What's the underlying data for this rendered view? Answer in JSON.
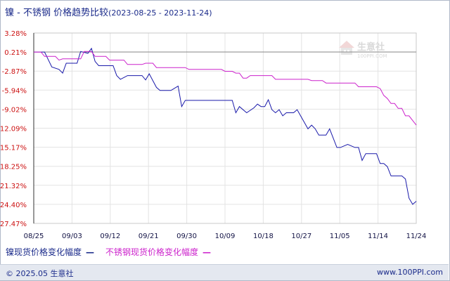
{
  "title": {
    "main": "镍 - 不锈钢 价格趋势比较",
    "range": "(2023-08-25 - 2023-11-24)"
  },
  "watermark": {
    "brand": "生意社",
    "url": "100PPI.COM"
  },
  "legend": {
    "items": [
      {
        "label": "镍现货价格变化幅度",
        "symbol": "—",
        "color": "#1a1aaa"
      },
      {
        "label": "不锈钢现货价格变化幅度",
        "symbol": "—",
        "color": "#cc22cc"
      }
    ]
  },
  "footer": {
    "copyright": "© 2025.05 生意社",
    "site": "www.100PPI.com"
  },
  "chart_data": {
    "type": "line",
    "xlabel": "",
    "ylabel": "",
    "x_ticks": [
      "08/25",
      "09/03",
      "09/12",
      "09/21",
      "09/30",
      "10/09",
      "10/18",
      "10/27",
      "11/05",
      "11/14",
      "11/24"
    ],
    "y_ticks": [
      "3.28%",
      "0.21%",
      "-2.87%",
      "-5.94%",
      "-9.02%",
      "-12.09%",
      "-15.17%",
      "-18.25%",
      "-21.32%",
      "-24.40%",
      "-27.47%"
    ],
    "ylim": [
      -27.47,
      3.28
    ],
    "grid": true,
    "legend_position": "bottom",
    "series": [
      {
        "name": "镍现货价格变化幅度",
        "color": "#1a1aaa",
        "points": [
          [
            0,
            0.21
          ],
          [
            3,
            0.21
          ],
          [
            5,
            -2.2
          ],
          [
            7,
            -2.6
          ],
          [
            8,
            -3.2
          ],
          [
            9,
            -1.6
          ],
          [
            12,
            -1.6
          ],
          [
            13,
            0.3
          ],
          [
            15,
            0.0
          ],
          [
            16,
            0.8
          ],
          [
            17,
            -1.3
          ],
          [
            18,
            -2.0
          ],
          [
            22,
            -2.0
          ],
          [
            23,
            -3.6
          ],
          [
            24,
            -4.2
          ],
          [
            25,
            -3.9
          ],
          [
            26,
            -3.6
          ],
          [
            30,
            -3.6
          ],
          [
            31,
            -4.3
          ],
          [
            32,
            -3.3
          ],
          [
            34,
            -5.5
          ],
          [
            35,
            -6.0
          ],
          [
            38,
            -6.0
          ],
          [
            40,
            -5.3
          ],
          [
            41,
            -8.6
          ],
          [
            42,
            -7.6
          ],
          [
            55,
            -7.6
          ],
          [
            56,
            -9.6
          ],
          [
            57,
            -8.6
          ],
          [
            59,
            -9.6
          ],
          [
            61,
            -8.8
          ],
          [
            62,
            -8.2
          ],
          [
            63,
            -8.6
          ],
          [
            64,
            -8.6
          ],
          [
            65,
            -7.5
          ],
          [
            66,
            -9.1
          ],
          [
            67,
            -9.6
          ],
          [
            68,
            -9.1
          ],
          [
            69,
            -10.1
          ],
          [
            70,
            -9.6
          ],
          [
            72,
            -9.6
          ],
          [
            73,
            -9.1
          ],
          [
            76,
            -12.2
          ],
          [
            77,
            -11.6
          ],
          [
            78,
            -12.2
          ],
          [
            79,
            -13.2
          ],
          [
            81,
            -13.2
          ],
          [
            82,
            -12.2
          ],
          [
            84,
            -15.2
          ],
          [
            85,
            -15.2
          ],
          [
            87,
            -14.7
          ],
          [
            89,
            -15.2
          ],
          [
            90,
            -15.2
          ],
          [
            91,
            -17.3
          ],
          [
            92,
            -16.2
          ],
          [
            95,
            -16.2
          ],
          [
            96,
            -17.8
          ],
          [
            97,
            -17.8
          ],
          [
            98,
            -18.3
          ],
          [
            99,
            -19.8
          ],
          [
            102,
            -19.8
          ],
          [
            103,
            -20.3
          ],
          [
            104,
            -23.4
          ],
          [
            105,
            -24.4
          ],
          [
            106,
            -23.9
          ]
        ]
      },
      {
        "name": "不锈钢现货价格变化幅度",
        "color": "#cc22cc",
        "points": [
          [
            0,
            0.21
          ],
          [
            2,
            0.21
          ],
          [
            3,
            -0.5
          ],
          [
            6,
            -0.5
          ],
          [
            7,
            -1.1
          ],
          [
            8,
            -0.9
          ],
          [
            13,
            -0.9
          ],
          [
            14,
            0.3
          ],
          [
            16,
            0.3
          ],
          [
            17,
            -0.5
          ],
          [
            20,
            -0.5
          ],
          [
            21,
            -1.1
          ],
          [
            25,
            -1.1
          ],
          [
            26,
            -1.8
          ],
          [
            30,
            -1.8
          ],
          [
            31,
            -1.6
          ],
          [
            33,
            -1.6
          ],
          [
            34,
            -2.3
          ],
          [
            42,
            -2.3
          ],
          [
            43,
            -2.6
          ],
          [
            52,
            -2.6
          ],
          [
            53,
            -2.9
          ],
          [
            55,
            -2.9
          ],
          [
            56,
            -3.2
          ],
          [
            57,
            -3.2
          ],
          [
            58,
            -4.0
          ],
          [
            59,
            -4.0
          ],
          [
            60,
            -3.6
          ],
          [
            66,
            -3.6
          ],
          [
            67,
            -4.2
          ],
          [
            76,
            -4.2
          ],
          [
            77,
            -4.4
          ],
          [
            80,
            -4.4
          ],
          [
            81,
            -4.8
          ],
          [
            89,
            -4.8
          ],
          [
            90,
            -5.4
          ],
          [
            95,
            -5.4
          ],
          [
            96,
            -5.7
          ],
          [
            97,
            -6.8
          ],
          [
            98,
            -7.3
          ],
          [
            99,
            -8.1
          ],
          [
            100,
            -8.1
          ],
          [
            101,
            -8.9
          ],
          [
            102,
            -8.9
          ],
          [
            103,
            -10.1
          ],
          [
            104,
            -10.1
          ],
          [
            106,
            -11.6
          ]
        ]
      }
    ]
  }
}
